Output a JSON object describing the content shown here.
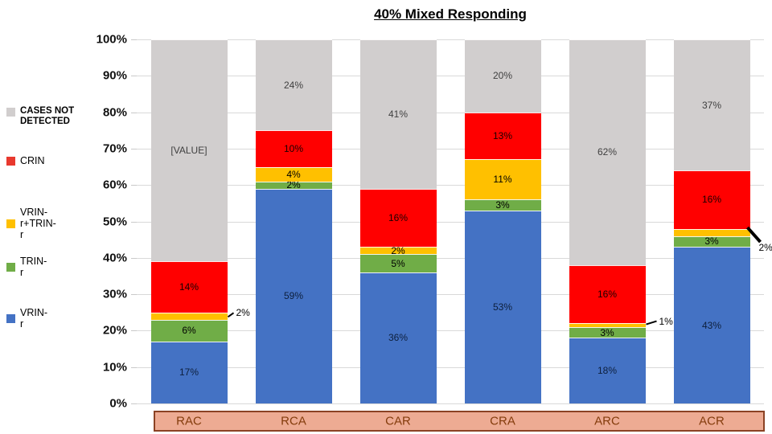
{
  "chart_data": {
    "type": "bar",
    "stacked": true,
    "title": "40% Mixed Responding",
    "categories": [
      "RAC",
      "RCA",
      "CAR",
      "CRA",
      "ARC",
      "ACR"
    ],
    "series": [
      {
        "name": "VRIN-r",
        "color": "#4472c4",
        "values": [
          17,
          59,
          36,
          53,
          18,
          43
        ],
        "labels": [
          "17%",
          "59%",
          "36%",
          "53%",
          "18%",
          "43%"
        ],
        "label_color": "#0d1f3c"
      },
      {
        "name": "TRIN-r",
        "color": "#70ad47",
        "values": [
          6,
          2,
          5,
          3,
          3,
          3
        ],
        "labels": [
          "6%",
          "2%",
          "5%",
          "3%",
          "3%",
          "3%"
        ],
        "label_color": "#000000"
      },
      {
        "name": "VRIN-r+TRIN-r",
        "color": "#ffc000",
        "values": [
          2,
          4,
          2,
          11,
          1,
          2
        ],
        "labels": [
          null,
          "4%",
          "2%",
          "11%",
          null,
          null
        ],
        "label_color": "#000000"
      },
      {
        "name": "CRIN",
        "color": "#ff0000",
        "values": [
          14,
          10,
          16,
          13,
          16,
          16
        ],
        "labels": [
          "14%",
          "10%",
          "16%",
          "13%",
          "16%",
          "16%"
        ],
        "label_color": "#1a0000"
      },
      {
        "name": "CASES NOT DETECTED",
        "color": "#d1cece",
        "values": [
          61,
          24,
          41,
          20,
          62,
          37
        ],
        "labels": [
          "[VALUE]",
          "24%",
          "41%",
          "20%",
          "62%",
          "37%"
        ],
        "label_color": "#3f3f3f"
      }
    ],
    "callouts": [
      {
        "category": "RAC",
        "series": "VRIN-r+TRIN-r",
        "text": "2%"
      },
      {
        "category": "ARC",
        "series": "VRIN-r+TRIN-r",
        "text": "1%"
      },
      {
        "category": "ACR",
        "series": "VRIN-r+TRIN-r",
        "text": "2%"
      }
    ],
    "y_ticks": [
      "0%",
      "10%",
      "20%",
      "30%",
      "40%",
      "50%",
      "60%",
      "70%",
      "80%",
      "90%",
      "100%"
    ],
    "ylim": [
      0,
      100
    ],
    "grid": true,
    "legend_position": "left"
  },
  "legend": {
    "items": [
      {
        "label": "CASES NOT DETECTED",
        "color": "#d1cece",
        "bold": true
      },
      {
        "label": "CRIN",
        "color": "#e8392e",
        "bold": false
      },
      {
        "label": "VRIN-r+TRIN-r",
        "color": "#ffc000",
        "bold": false
      },
      {
        "label": "TRIN-r",
        "color": "#70ad47",
        "bold": false
      },
      {
        "label": "VRIN-r",
        "color": "#4472c4",
        "bold": false
      }
    ]
  },
  "colors": {
    "gridline": "#d9d9d9",
    "axis_box_fill": "#edab93",
    "axis_box_border": "#8b4224",
    "axis_text": "#843c0c",
    "leader_line": "#000000"
  }
}
